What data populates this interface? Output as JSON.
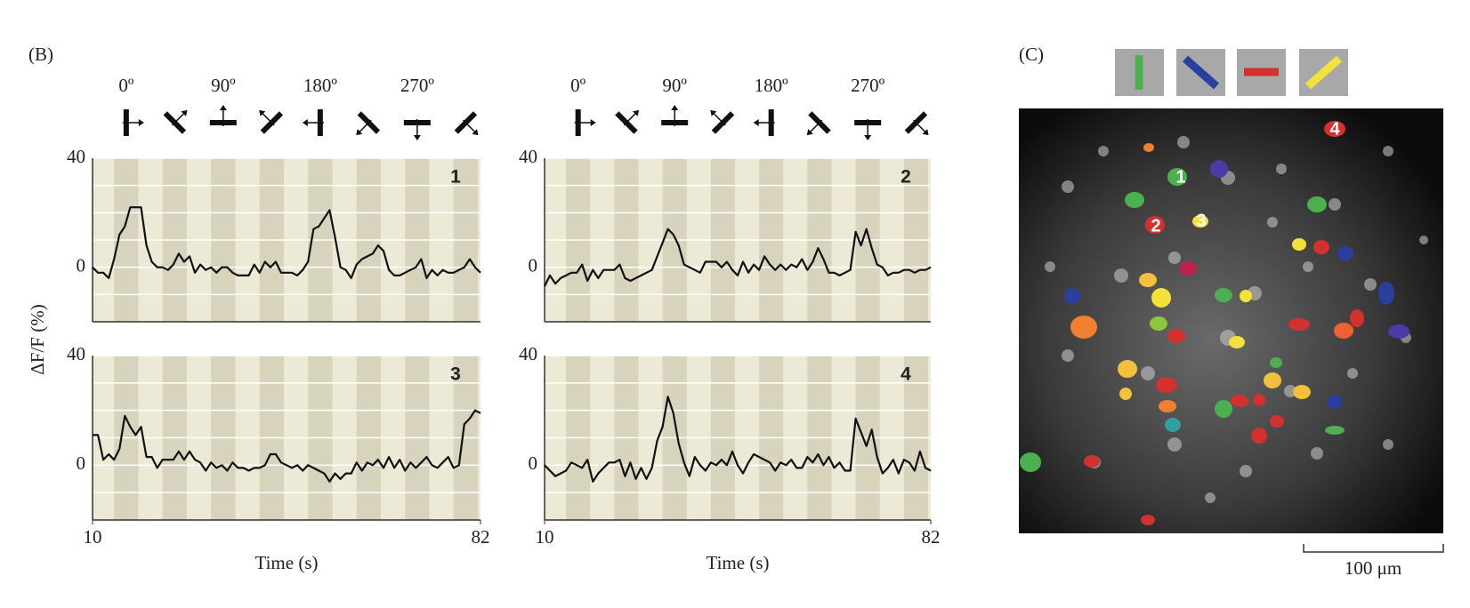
{
  "panel_b_label": "(B)",
  "panel_c_label": "(C)",
  "y_label": "ΔF/F (%)",
  "direction_labels": [
    "0º",
    "90º",
    "180º",
    "270º"
  ],
  "scale_bar_label": "100 μm",
  "cell_labels": [
    "1",
    "2",
    "3",
    "4"
  ],
  "chart_data": [
    {
      "type": "line",
      "title": "1",
      "color": "#111111",
      "x": [
        10,
        11,
        12,
        13,
        14,
        15,
        16,
        17,
        18,
        19,
        20,
        21,
        22,
        23,
        24,
        25,
        26,
        27,
        28,
        29,
        30,
        31,
        32,
        33,
        34,
        35,
        36,
        37,
        38,
        39,
        40,
        41,
        42,
        43,
        44,
        45,
        46,
        47,
        48,
        49,
        50,
        51,
        52,
        53,
        54,
        55,
        56,
        57,
        58,
        59,
        60,
        61,
        62,
        63,
        64,
        65,
        66,
        67,
        68,
        69,
        70,
        71,
        72,
        73,
        74,
        75,
        76,
        77,
        78,
        79,
        80,
        81,
        82
      ],
      "values": [
        0,
        -2,
        -2,
        -4,
        3,
        12,
        15,
        22,
        22,
        22,
        8,
        2,
        0,
        0,
        -1,
        1,
        5,
        2,
        4,
        -2,
        1,
        -1,
        0,
        -2,
        0,
        0,
        -2,
        -3,
        -3,
        -3,
        1,
        -2,
        2,
        0,
        2,
        -2,
        -2,
        -2,
        -3,
        -1,
        2,
        14,
        15,
        18,
        21,
        11,
        0,
        -1,
        -4,
        1,
        3,
        4,
        5,
        8,
        6,
        -1,
        -3,
        -3,
        -2,
        -1,
        0,
        3,
        -4,
        -1,
        -3,
        -1,
        -2,
        -2,
        -1,
        0,
        3,
        0,
        -2
      ],
      "xlim": [
        10,
        82
      ],
      "ylim": [
        -20,
        40
      ],
      "yticks": [
        0,
        40
      ],
      "grid_lines": [
        -10,
        10,
        20,
        30
      ],
      "grid": true,
      "stimulus_onsets": [
        14,
        23,
        32,
        41,
        50,
        59,
        68,
        77
      ],
      "stimulus_duration": 4.5
    },
    {
      "type": "line",
      "title": "2",
      "color": "#111111",
      "x": [
        10,
        11,
        12,
        13,
        14,
        15,
        16,
        17,
        18,
        19,
        20,
        21,
        22,
        23,
        24,
        25,
        26,
        27,
        28,
        29,
        30,
        31,
        32,
        33,
        34,
        35,
        36,
        37,
        38,
        39,
        40,
        41,
        42,
        43,
        44,
        45,
        46,
        47,
        48,
        49,
        50,
        51,
        52,
        53,
        54,
        55,
        56,
        57,
        58,
        59,
        60,
        61,
        62,
        63,
        64,
        65,
        66,
        67,
        68,
        69,
        70,
        71,
        72,
        73,
        74,
        75,
        76,
        77,
        78,
        79,
        80,
        81,
        82
      ],
      "values": [
        -7,
        -3,
        -6,
        -4,
        -3,
        -2,
        -2,
        1,
        -5,
        -1,
        -4,
        -1,
        -1,
        -1,
        1,
        -4,
        -5,
        -4,
        -3,
        -2,
        -1,
        4,
        9,
        14,
        12,
        8,
        1,
        0,
        -1,
        -2,
        2,
        2,
        2,
        0,
        2,
        -1,
        -3,
        2,
        -2,
        1,
        -1,
        4,
        1,
        -1,
        1,
        -1,
        1,
        0,
        3,
        -1,
        2,
        7,
        3,
        -2,
        -2,
        -3,
        -2,
        -1,
        13,
        8,
        14,
        7,
        1,
        0,
        -3,
        -2,
        -2,
        -1,
        -1,
        -2,
        -1,
        -1,
        0
      ],
      "xlim": [
        10,
        82
      ],
      "ylim": [
        -20,
        40
      ],
      "yticks": [
        0,
        40
      ],
      "grid_lines": [
        -10,
        10,
        20,
        30
      ],
      "grid": true,
      "stimulus_onsets": [
        14,
        23,
        32,
        41,
        50,
        59,
        68,
        77
      ],
      "stimulus_duration": 4.5
    },
    {
      "type": "line",
      "title": "3",
      "color": "#111111",
      "xlabel": "Time (s)",
      "x": [
        10,
        11,
        12,
        13,
        14,
        15,
        16,
        17,
        18,
        19,
        20,
        21,
        22,
        23,
        24,
        25,
        26,
        27,
        28,
        29,
        30,
        31,
        32,
        33,
        34,
        35,
        36,
        37,
        38,
        39,
        40,
        41,
        42,
        43,
        44,
        45,
        46,
        47,
        48,
        49,
        50,
        51,
        52,
        53,
        54,
        55,
        56,
        57,
        58,
        59,
        60,
        61,
        62,
        63,
        64,
        65,
        66,
        67,
        68,
        69,
        70,
        71,
        72,
        73,
        74,
        75,
        76,
        77,
        78,
        79,
        80,
        81,
        82
      ],
      "values": [
        11,
        11,
        2,
        4,
        2,
        6,
        18,
        14,
        11,
        14,
        3,
        3,
        -1,
        2,
        2,
        2,
        5,
        2,
        5,
        2,
        1,
        -2,
        1,
        -1,
        0,
        -2,
        1,
        -1,
        -1,
        -2,
        -1,
        -1,
        0,
        4,
        4,
        1,
        0,
        -1,
        0,
        -2,
        0,
        -1,
        -2,
        -3,
        -6,
        -3,
        -5,
        -3,
        -3,
        1,
        -2,
        1,
        0,
        2,
        -1,
        3,
        -1,
        2,
        -2,
        1,
        -1,
        1,
        3,
        0,
        -1,
        1,
        3,
        -1,
        0,
        15,
        17,
        20,
        19
      ],
      "xlim": [
        10,
        82
      ],
      "xticks": [
        10,
        82
      ],
      "ylim": [
        -20,
        40
      ],
      "yticks": [
        0,
        40
      ],
      "grid_lines": [
        -10,
        10,
        20,
        30
      ],
      "grid": true,
      "stimulus_onsets": [
        14,
        23,
        32,
        41,
        50,
        59,
        68,
        77
      ],
      "stimulus_duration": 4.5
    },
    {
      "type": "line",
      "title": "4",
      "color": "#111111",
      "xlabel": "Time (s)",
      "x": [
        10,
        11,
        12,
        13,
        14,
        15,
        16,
        17,
        18,
        19,
        20,
        21,
        22,
        23,
        24,
        25,
        26,
        27,
        28,
        29,
        30,
        31,
        32,
        33,
        34,
        35,
        36,
        37,
        38,
        39,
        40,
        41,
        42,
        43,
        44,
        45,
        46,
        47,
        48,
        49,
        50,
        51,
        52,
        53,
        54,
        55,
        56,
        57,
        58,
        59,
        60,
        61,
        62,
        63,
        64,
        65,
        66,
        67,
        68,
        69,
        70,
        71,
        72,
        73,
        74,
        75,
        76,
        77,
        78,
        79,
        80,
        81,
        82
      ],
      "values": [
        0,
        -2,
        -4,
        -3,
        -2,
        1,
        0,
        -1,
        2,
        -6,
        -3,
        -1,
        1,
        1,
        2,
        -4,
        1,
        -5,
        -1,
        -5,
        -1,
        9,
        14,
        25,
        19,
        8,
        1,
        -4,
        3,
        0,
        -2,
        1,
        0,
        2,
        0,
        5,
        0,
        -3,
        1,
        4,
        3,
        2,
        1,
        -2,
        1,
        0,
        2,
        -1,
        -1,
        3,
        1,
        4,
        0,
        3,
        -1,
        1,
        -2,
        -2,
        17,
        12,
        7,
        13,
        3,
        -3,
        -1,
        2,
        -3,
        2,
        1,
        -2,
        5,
        -1,
        -2
      ],
      "xlim": [
        10,
        82
      ],
      "xticks": [
        10,
        82
      ],
      "ylim": [
        -20,
        40
      ],
      "yticks": [
        0,
        40
      ],
      "grid_lines": [
        -10,
        10,
        20,
        30
      ],
      "grid": true,
      "stimulus_onsets": [
        14,
        23,
        32,
        41,
        50,
        59,
        68,
        77
      ],
      "stimulus_duration": 4.5
    }
  ]
}
